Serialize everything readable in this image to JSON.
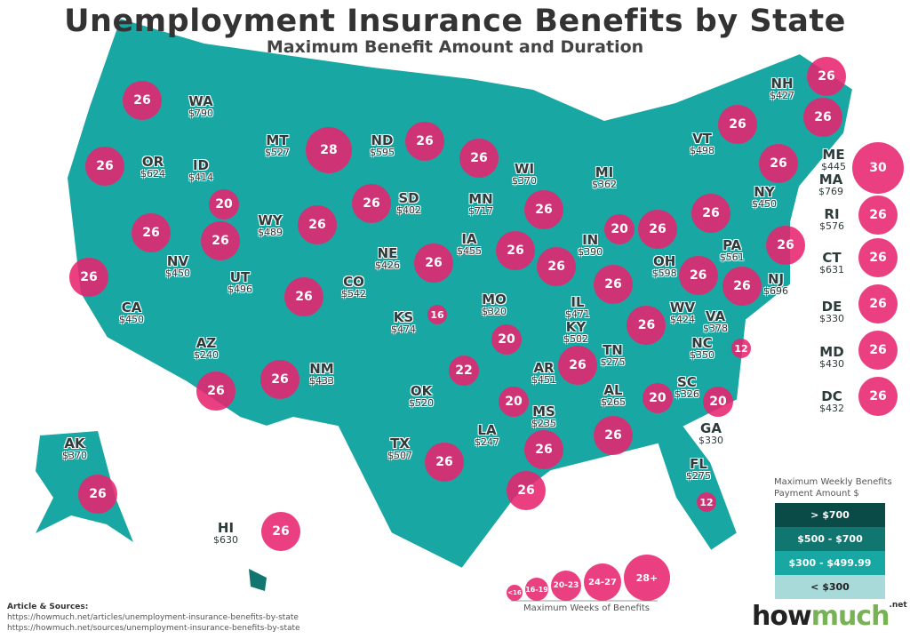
{
  "title": "Unemployment Insurance Benefits by State",
  "subtitle": "Maximum Benefit Amount and Duration",
  "colors": {
    "tier1": "#0a4a47",
    "tier2": "#11766f",
    "tier3": "#19a7a3",
    "tier4": "#a8dada",
    "bubble": "#e7246e"
  },
  "states": [
    {
      "abbr": "WA",
      "amount": "$790",
      "weeks": "26",
      "tier": "tier1"
    },
    {
      "abbr": "OR",
      "amount": "$624",
      "weeks": "26",
      "tier": "tier2"
    },
    {
      "abbr": "CA",
      "amount": "$450",
      "weeks": "26",
      "tier": "tier3"
    },
    {
      "abbr": "NV",
      "amount": "$450",
      "weeks": "26",
      "tier": "tier3"
    },
    {
      "abbr": "ID",
      "amount": "$414",
      "weeks": "20",
      "tier": "tier3"
    },
    {
      "abbr": "MT",
      "amount": "$527",
      "weeks": "28",
      "tier": "tier2"
    },
    {
      "abbr": "WY",
      "amount": "$489",
      "weeks": "26",
      "tier": "tier3"
    },
    {
      "abbr": "UT",
      "amount": "$496",
      "weeks": "26",
      "tier": "tier3"
    },
    {
      "abbr": "AZ",
      "amount": "$240",
      "weeks": "26",
      "tier": "tier4"
    },
    {
      "abbr": "CO",
      "amount": "$542",
      "weeks": "26",
      "tier": "tier2"
    },
    {
      "abbr": "NM",
      "amount": "$433",
      "weeks": "26",
      "tier": "tier3"
    },
    {
      "abbr": "ND",
      "amount": "$595",
      "weeks": "26",
      "tier": "tier2"
    },
    {
      "abbr": "SD",
      "amount": "$402",
      "weeks": "26",
      "tier": "tier3"
    },
    {
      "abbr": "NE",
      "amount": "$426",
      "weeks": "26",
      "tier": "tier3"
    },
    {
      "abbr": "KS",
      "amount": "$474",
      "weeks": "16",
      "tier": "tier3"
    },
    {
      "abbr": "OK",
      "amount": "$520",
      "weeks": "22",
      "tier": "tier2"
    },
    {
      "abbr": "TX",
      "amount": "$507",
      "weeks": "26",
      "tier": "tier2"
    },
    {
      "abbr": "MN",
      "amount": "$717",
      "weeks": "26",
      "tier": "tier1"
    },
    {
      "abbr": "IA",
      "amount": "$455",
      "weeks": "26",
      "tier": "tier3"
    },
    {
      "abbr": "MO",
      "amount": "$320",
      "weeks": "20",
      "tier": "tier3"
    },
    {
      "abbr": "AR",
      "amount": "$451",
      "weeks": "20",
      "tier": "tier3"
    },
    {
      "abbr": "LA",
      "amount": "$247",
      "weeks": "26",
      "tier": "tier4"
    },
    {
      "abbr": "WI",
      "amount": "$370",
      "weeks": "26",
      "tier": "tier3"
    },
    {
      "abbr": "IL",
      "amount": "$471",
      "weeks": "26",
      "tier": "tier3"
    },
    {
      "abbr": "IN",
      "amount": "$390",
      "weeks": "26",
      "tier": "tier3"
    },
    {
      "abbr": "MI",
      "amount": "$362",
      "weeks": "20",
      "tier": "tier3"
    },
    {
      "abbr": "MS",
      "amount": "$235",
      "weeks": "26",
      "tier": "tier4"
    },
    {
      "abbr": "AL",
      "amount": "$265",
      "weeks": "26",
      "tier": "tier4"
    },
    {
      "abbr": "TN",
      "amount": "$275",
      "weeks": "26",
      "tier": "tier4"
    },
    {
      "abbr": "KY",
      "amount": "$502",
      "weeks": "26",
      "tier": "tier2"
    },
    {
      "abbr": "OH",
      "amount": "$598",
      "weeks": "26",
      "tier": "tier2"
    },
    {
      "abbr": "WV",
      "amount": "$424",
      "weeks": "26",
      "tier": "tier3"
    },
    {
      "abbr": "VA",
      "amount": "$378",
      "weeks": "26",
      "tier": "tier3"
    },
    {
      "abbr": "NC",
      "amount": "$350",
      "weeks": "12",
      "tier": "tier3"
    },
    {
      "abbr": "SC",
      "amount": "$326",
      "weeks": "20",
      "tier": "tier3"
    },
    {
      "abbr": "GA",
      "amount": "$330",
      "weeks": "20",
      "tier": "tier3"
    },
    {
      "abbr": "FL",
      "amount": "$275",
      "weeks": "12",
      "tier": "tier4"
    },
    {
      "abbr": "PA",
      "amount": "$561",
      "weeks": "26",
      "tier": "tier2"
    },
    {
      "abbr": "NY",
      "amount": "$450",
      "weeks": "26",
      "tier": "tier3"
    },
    {
      "abbr": "NJ",
      "amount": "$696",
      "weeks": "26",
      "tier": "tier2"
    },
    {
      "abbr": "ME",
      "amount": "$445",
      "weeks": "26",
      "tier": "tier3"
    },
    {
      "abbr": "NH",
      "amount": "$427",
      "weeks": "26",
      "tier": "tier3"
    },
    {
      "abbr": "VT",
      "amount": "$498",
      "weeks": "26",
      "tier": "tier3"
    },
    {
      "abbr": "MA",
      "amount": "$769",
      "weeks": "30",
      "tier": "tier1"
    },
    {
      "abbr": "RI",
      "amount": "$576",
      "weeks": "26",
      "tier": "tier2"
    },
    {
      "abbr": "CT",
      "amount": "$631",
      "weeks": "26",
      "tier": "tier2"
    },
    {
      "abbr": "DE",
      "amount": "$330",
      "weeks": "26",
      "tier": "tier3"
    },
    {
      "abbr": "MD",
      "amount": "$430",
      "weeks": "26",
      "tier": "tier3"
    },
    {
      "abbr": "DC",
      "amount": "$432",
      "weeks": "26",
      "tier": "tier3"
    },
    {
      "abbr": "AK",
      "amount": "$370",
      "weeks": "26",
      "tier": "tier3"
    },
    {
      "abbr": "HI",
      "amount": "$630",
      "weeks": "26",
      "tier": "tier2"
    }
  ],
  "legend": {
    "title_line1": "Maximum Weekly Benefits",
    "title_line2": "Payment Amount $",
    "items": [
      {
        "label": "> $700",
        "tier": "tier1"
      },
      {
        "label": "$500 - $700",
        "tier": "tier2"
      },
      {
        "label": "$300 - $499.99",
        "tier": "tier3"
      },
      {
        "label": "< $300",
        "tier": "tier4"
      }
    ]
  },
  "weeks_legend": {
    "title": "Maximum Weeks of Benefits",
    "items": [
      "<16",
      "16-19",
      "20-23",
      "24-27",
      "28+"
    ]
  },
  "sources": {
    "heading": "Article & Sources:",
    "line1": "https://howmuch.net/articles/unemployment-insurance-benefits-by-state",
    "line2": "https://howmuch.net/sources/unemployment-insurance-benefits-by-state"
  },
  "brand": {
    "part1": "how",
    "part2": "much",
    "part3": ".net"
  }
}
